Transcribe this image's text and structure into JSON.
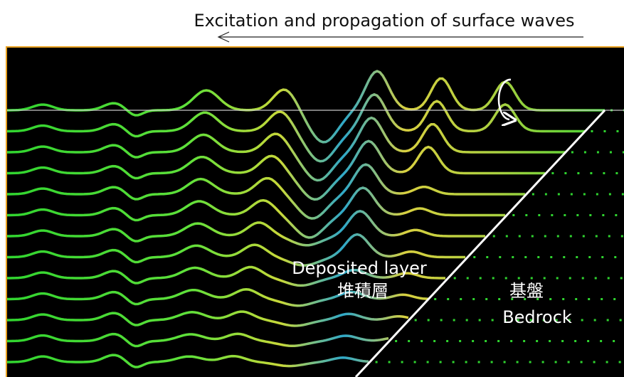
{
  "header": {
    "title": "Excitation and propagation of surface waves"
  },
  "labels": {
    "deposited_en": "Deposited layer",
    "deposited_ja": "堆積層",
    "bedrock_ja": "基盤",
    "bedrock_en": "Bedrock"
  }
}
